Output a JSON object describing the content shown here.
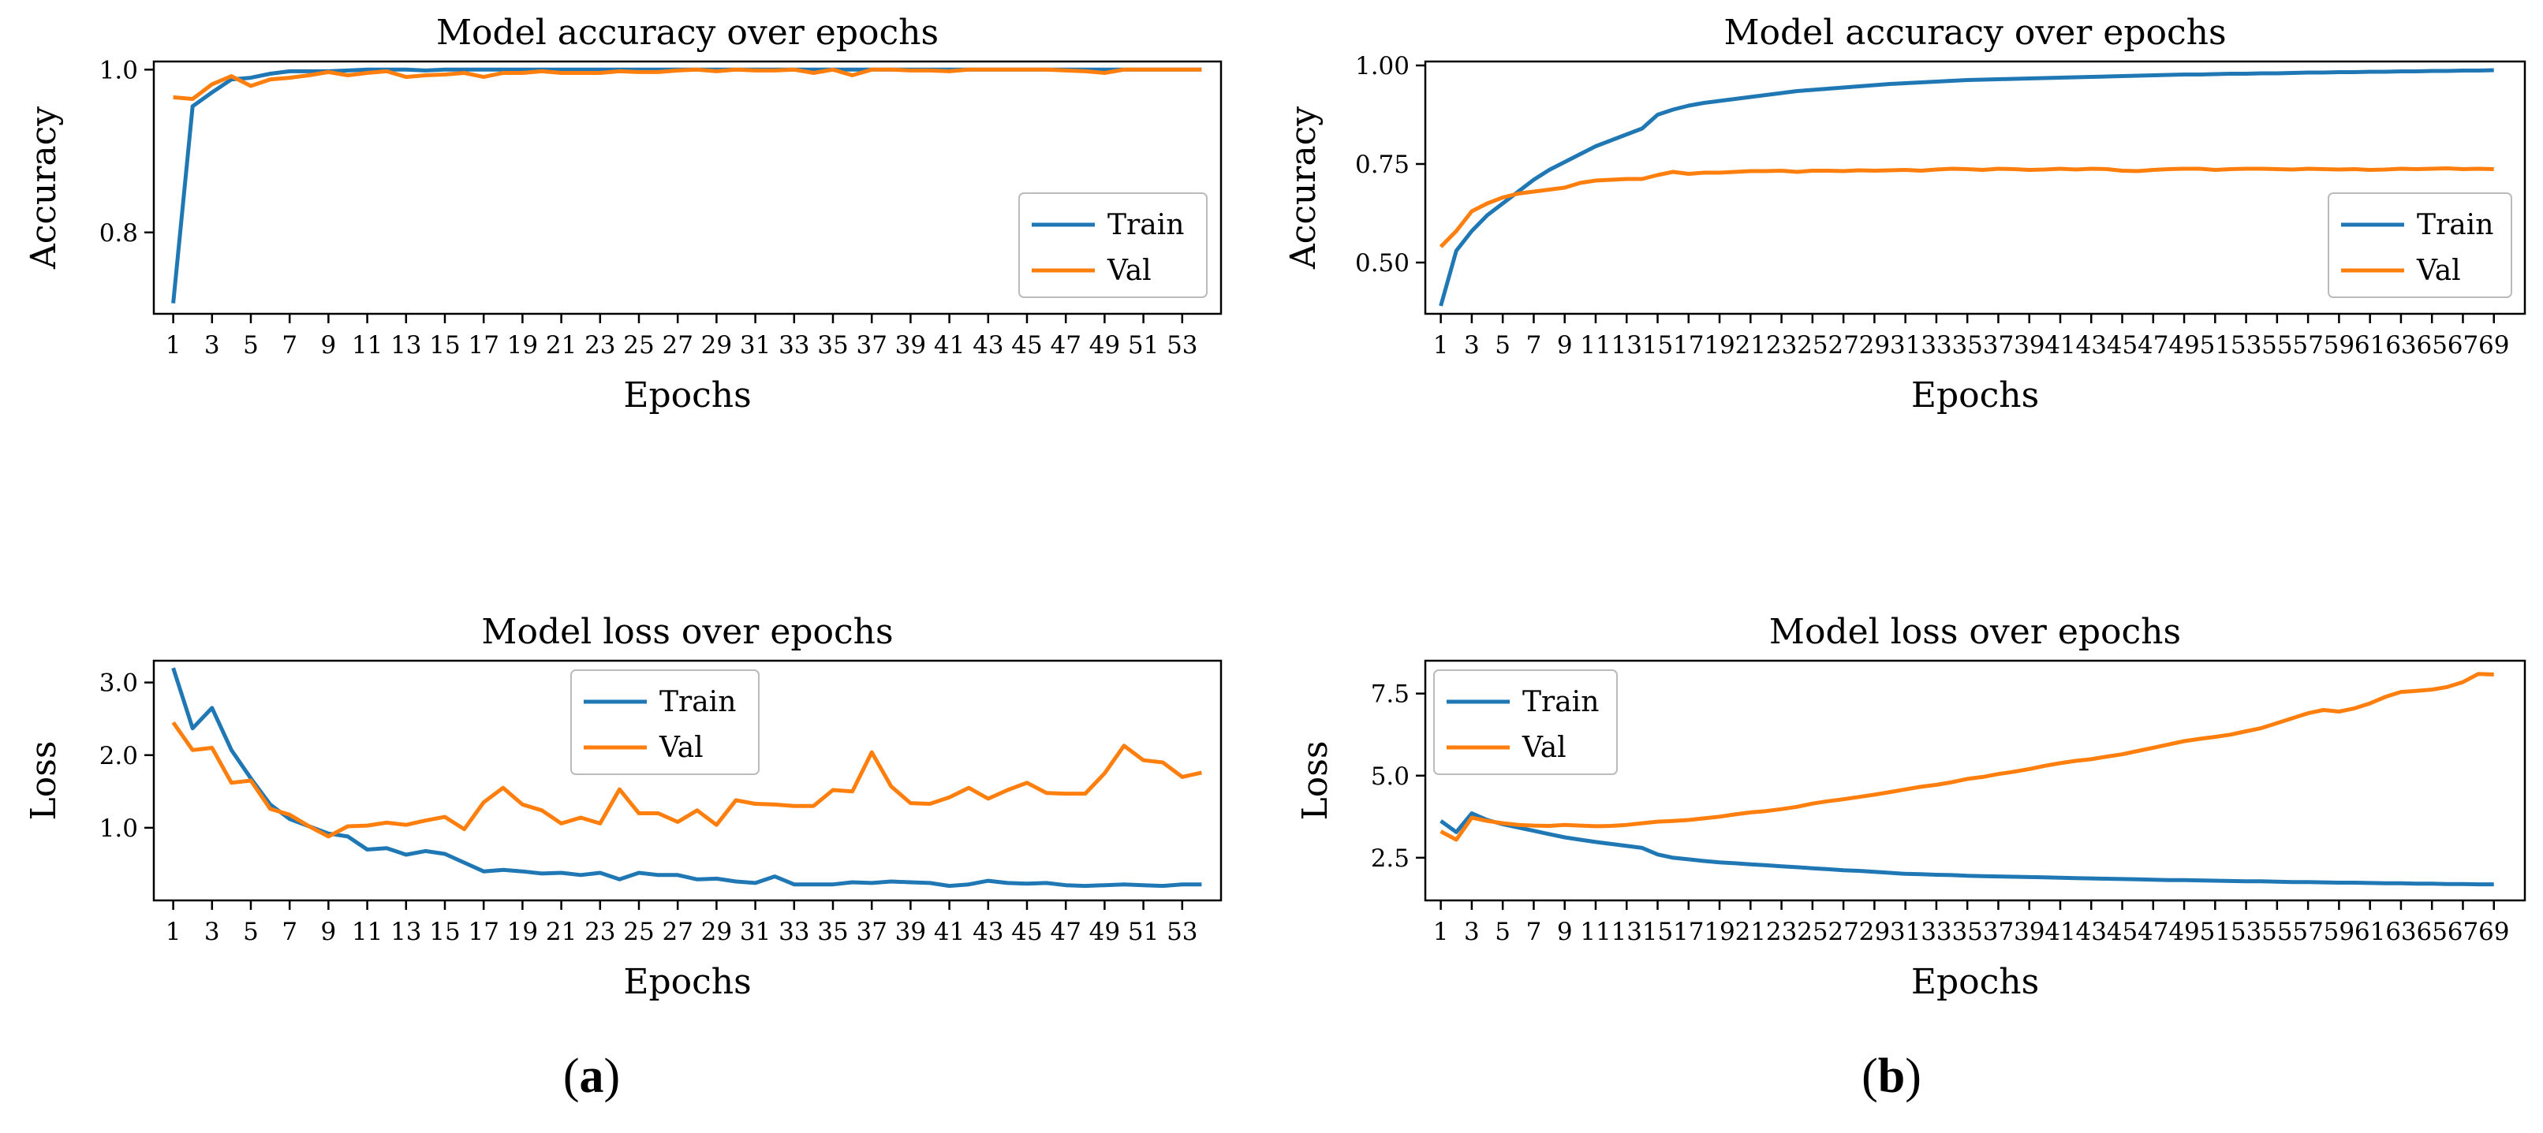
{
  "captions": [
    "a",
    "b"
  ],
  "colors": {
    "train": "#1f77b4",
    "val": "#ff7f0e"
  },
  "chart_data": [
    {
      "type": "line",
      "title": "Model accuracy over epochs",
      "xlabel": "Epochs",
      "ylabel": "Accuracy",
      "x_start": 1,
      "x_tick_step": 2,
      "xlim": [
        0,
        55
      ],
      "ylim": [
        0.7,
        1.01
      ],
      "y_ticks": [
        0.8,
        1.0
      ],
      "y_tick_labels": [
        "0.8",
        "1.0"
      ],
      "legend_position": "lower-right",
      "series": [
        {
          "name": "Train",
          "color": "#1f77b4",
          "values": [
            0.713,
            0.955,
            0.972,
            0.988,
            0.99,
            0.995,
            0.998,
            0.998,
            0.998,
            0.999,
            1.0,
            1.0,
            1.0,
            0.999,
            1.0,
            1.0,
            1.0,
            1.0,
            1.0,
            1.0,
            1.0,
            1.0,
            1.0,
            1.0,
            1.0,
            1.0,
            1.0,
            1.0,
            1.0,
            1.0,
            1.0,
            1.0,
            1.0,
            1.0,
            1.0,
            1.0,
            1.0,
            1.0,
            1.0,
            1.0,
            1.0,
            1.0,
            1.0,
            1.0,
            1.0,
            1.0,
            1.0,
            1.0,
            1.0,
            1.0,
            1.0,
            1.0,
            1.0,
            1.0
          ]
        },
        {
          "name": "Val",
          "color": "#ff7f0e",
          "values": [
            0.966,
            0.964,
            0.982,
            0.992,
            0.98,
            0.988,
            0.99,
            0.993,
            0.997,
            0.993,
            0.996,
            0.998,
            0.991,
            0.993,
            0.994,
            0.996,
            0.991,
            0.996,
            0.996,
            0.998,
            0.996,
            0.996,
            0.996,
            0.998,
            0.997,
            0.997,
            0.999,
            1.0,
            0.998,
            1.0,
            0.999,
            0.999,
            1.0,
            0.996,
            1.0,
            0.993,
            1.0,
            1.0,
            0.999,
            0.999,
            0.998,
            1.0,
            1.0,
            1.0,
            1.0,
            1.0,
            0.999,
            0.998,
            0.996,
            1.0,
            1.0,
            1.0,
            1.0,
            1.0
          ]
        }
      ]
    },
    {
      "type": "line",
      "title": "Model accuracy over epochs",
      "xlabel": "Epochs",
      "ylabel": "Accuracy",
      "x_start": 1,
      "x_tick_step": 2,
      "xlim": [
        0,
        71
      ],
      "ylim": [
        0.37,
        1.01
      ],
      "y_ticks": [
        0.5,
        0.75,
        1.0
      ],
      "y_tick_labels": [
        "0.50",
        "0.75",
        "1.00"
      ],
      "legend_position": "right",
      "series": [
        {
          "name": "Train",
          "color": "#1f77b4",
          "values": [
            0.39,
            0.53,
            0.58,
            0.62,
            0.65,
            0.68,
            0.71,
            0.735,
            0.755,
            0.775,
            0.795,
            0.81,
            0.825,
            0.84,
            0.875,
            0.888,
            0.898,
            0.905,
            0.91,
            0.915,
            0.92,
            0.925,
            0.93,
            0.935,
            0.938,
            0.941,
            0.944,
            0.947,
            0.95,
            0.953,
            0.955,
            0.957,
            0.959,
            0.961,
            0.963,
            0.964,
            0.965,
            0.966,
            0.967,
            0.968,
            0.969,
            0.97,
            0.971,
            0.972,
            0.973,
            0.974,
            0.975,
            0.976,
            0.977,
            0.977,
            0.978,
            0.979,
            0.979,
            0.98,
            0.98,
            0.981,
            0.982,
            0.982,
            0.983,
            0.983,
            0.984,
            0.984,
            0.985,
            0.985,
            0.986,
            0.986,
            0.987,
            0.987,
            0.988
          ]
        },
        {
          "name": "Val",
          "color": "#ff7f0e",
          "values": [
            0.54,
            0.58,
            0.63,
            0.65,
            0.665,
            0.675,
            0.68,
            0.685,
            0.69,
            0.702,
            0.708,
            0.71,
            0.712,
            0.712,
            0.722,
            0.73,
            0.725,
            0.728,
            0.728,
            0.73,
            0.732,
            0.732,
            0.733,
            0.73,
            0.733,
            0.733,
            0.732,
            0.734,
            0.733,
            0.734,
            0.735,
            0.733,
            0.736,
            0.738,
            0.737,
            0.735,
            0.738,
            0.737,
            0.735,
            0.736,
            0.738,
            0.736,
            0.738,
            0.737,
            0.733,
            0.732,
            0.735,
            0.737,
            0.738,
            0.738,
            0.735,
            0.737,
            0.738,
            0.738,
            0.737,
            0.736,
            0.738,
            0.737,
            0.736,
            0.737,
            0.735,
            0.736,
            0.738,
            0.737,
            0.738,
            0.739,
            0.737,
            0.738,
            0.737
          ]
        }
      ]
    },
    {
      "type": "line",
      "title": "Model loss over epochs",
      "xlabel": "Epochs",
      "ylabel": "Loss",
      "x_start": 1,
      "x_tick_step": 2,
      "xlim": [
        0,
        55
      ],
      "ylim": [
        0.0,
        3.3
      ],
      "y_ticks": [
        1.0,
        2.0,
        3.0
      ],
      "y_tick_labels": [
        "1.0",
        "2.0",
        "3.0"
      ],
      "legend_position": "top-center",
      "series": [
        {
          "name": "Train",
          "color": "#1f77b4",
          "values": [
            3.2,
            2.37,
            2.65,
            2.07,
            1.68,
            1.32,
            1.12,
            1.02,
            0.92,
            0.88,
            0.7,
            0.72,
            0.63,
            0.68,
            0.64,
            0.52,
            0.4,
            0.42,
            0.4,
            0.37,
            0.38,
            0.35,
            0.38,
            0.29,
            0.38,
            0.35,
            0.35,
            0.29,
            0.3,
            0.26,
            0.24,
            0.33,
            0.22,
            0.22,
            0.22,
            0.25,
            0.24,
            0.26,
            0.25,
            0.24,
            0.2,
            0.22,
            0.27,
            0.24,
            0.23,
            0.24,
            0.21,
            0.2,
            0.21,
            0.22,
            0.21,
            0.2,
            0.22,
            0.22
          ]
        },
        {
          "name": "Val",
          "color": "#ff7f0e",
          "values": [
            2.45,
            2.07,
            2.1,
            1.62,
            1.65,
            1.26,
            1.18,
            1.02,
            0.88,
            1.02,
            1.03,
            1.07,
            1.04,
            1.1,
            1.15,
            0.98,
            1.35,
            1.55,
            1.32,
            1.24,
            1.06,
            1.14,
            1.06,
            1.53,
            1.2,
            1.2,
            1.08,
            1.24,
            1.04,
            1.38,
            1.33,
            1.32,
            1.3,
            1.3,
            1.52,
            1.5,
            2.04,
            1.57,
            1.34,
            1.33,
            1.42,
            1.55,
            1.4,
            1.52,
            1.62,
            1.48,
            1.47,
            1.47,
            1.75,
            2.13,
            1.93,
            1.9,
            1.7,
            1.76
          ]
        }
      ]
    },
    {
      "type": "line",
      "title": "Model loss over epochs",
      "xlabel": "Epochs",
      "ylabel": "Loss",
      "x_start": 1,
      "x_tick_step": 2,
      "xlim": [
        0,
        71
      ],
      "ylim": [
        1.2,
        8.5
      ],
      "y_ticks": [
        2.5,
        5.0,
        7.5
      ],
      "y_tick_labels": [
        "2.5",
        "5.0",
        "7.5"
      ],
      "legend_position": "top-left",
      "series": [
        {
          "name": "Train",
          "color": "#1f77b4",
          "values": [
            3.62,
            3.28,
            3.85,
            3.65,
            3.52,
            3.42,
            3.32,
            3.22,
            3.12,
            3.05,
            2.98,
            2.92,
            2.86,
            2.8,
            2.6,
            2.5,
            2.45,
            2.4,
            2.36,
            2.33,
            2.3,
            2.27,
            2.24,
            2.21,
            2.18,
            2.15,
            2.12,
            2.1,
            2.07,
            2.04,
            2.01,
            2.0,
            1.98,
            1.97,
            1.95,
            1.94,
            1.93,
            1.92,
            1.91,
            1.9,
            1.89,
            1.88,
            1.87,
            1.86,
            1.85,
            1.84,
            1.83,
            1.82,
            1.82,
            1.81,
            1.8,
            1.79,
            1.78,
            1.78,
            1.77,
            1.76,
            1.76,
            1.75,
            1.74,
            1.74,
            1.73,
            1.72,
            1.72,
            1.71,
            1.71,
            1.7,
            1.7,
            1.69,
            1.69
          ]
        },
        {
          "name": "Val",
          "color": "#ff7f0e",
          "values": [
            3.3,
            3.05,
            3.72,
            3.62,
            3.55,
            3.5,
            3.48,
            3.47,
            3.5,
            3.48,
            3.46,
            3.47,
            3.5,
            3.55,
            3.6,
            3.62,
            3.65,
            3.7,
            3.75,
            3.82,
            3.88,
            3.92,
            3.98,
            4.05,
            4.15,
            4.22,
            4.28,
            4.35,
            4.42,
            4.5,
            4.58,
            4.66,
            4.72,
            4.8,
            4.9,
            4.96,
            5.05,
            5.12,
            5.2,
            5.3,
            5.38,
            5.45,
            5.5,
            5.58,
            5.65,
            5.75,
            5.85,
            5.95,
            6.05,
            6.12,
            6.18,
            6.25,
            6.35,
            6.45,
            6.6,
            6.75,
            6.9,
            7.0,
            6.95,
            7.05,
            7.2,
            7.4,
            7.55,
            7.58,
            7.62,
            7.7,
            7.85,
            8.1,
            8.08
          ]
        }
      ]
    }
  ]
}
